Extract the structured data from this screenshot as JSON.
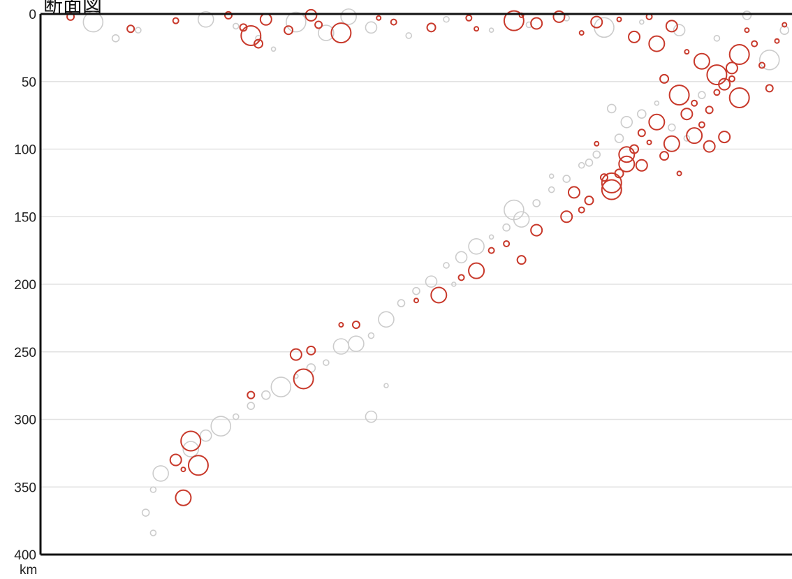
{
  "chart_data": {
    "type": "scatter",
    "title": "断面図",
    "unit_label": "km",
    "xlabel": "",
    "ylabel": "",
    "y_inverted": true,
    "ylim": [
      0,
      400
    ],
    "y_ticks": [
      0,
      50,
      100,
      150,
      200,
      250,
      300,
      350,
      400
    ],
    "grid": true,
    "colors": {
      "axis": "#111111",
      "grid": "#e2e2e2",
      "recent": "#c8392b",
      "past": "#cccccc"
    },
    "series": [
      {
        "category": "red",
        "points": [
          [
            0.04,
            2
          ],
          [
            0.12,
            11
          ],
          [
            0.18,
            5
          ],
          [
            0.25,
            1
          ],
          [
            0.27,
            10
          ],
          [
            0.28,
            16
          ],
          [
            0.29,
            22
          ],
          [
            0.3,
            4
          ],
          [
            0.33,
            12
          ],
          [
            0.36,
            1
          ],
          [
            0.37,
            8
          ],
          [
            0.4,
            14
          ],
          [
            0.45,
            3
          ],
          [
            0.47,
            6
          ],
          [
            0.52,
            10
          ],
          [
            0.57,
            3
          ],
          [
            0.58,
            11
          ],
          [
            0.63,
            5
          ],
          [
            0.64,
            1
          ],
          [
            0.66,
            7
          ],
          [
            0.69,
            2
          ],
          [
            0.72,
            14
          ],
          [
            0.74,
            6
          ],
          [
            0.77,
            4
          ],
          [
            0.79,
            17
          ],
          [
            0.81,
            2
          ],
          [
            0.82,
            22
          ],
          [
            0.84,
            9
          ],
          [
            0.86,
            28
          ],
          [
            0.88,
            35
          ],
          [
            0.9,
            45
          ],
          [
            0.91,
            52
          ],
          [
            0.92,
            40
          ],
          [
            0.93,
            30
          ],
          [
            0.94,
            12
          ],
          [
            0.95,
            22
          ],
          [
            0.96,
            38
          ],
          [
            0.97,
            55
          ],
          [
            0.98,
            20
          ],
          [
            0.99,
            8
          ],
          [
            0.83,
            48
          ],
          [
            0.85,
            60
          ],
          [
            0.86,
            74
          ],
          [
            0.87,
            66
          ],
          [
            0.88,
            82
          ],
          [
            0.89,
            71
          ],
          [
            0.9,
            58
          ],
          [
            0.91,
            91
          ],
          [
            0.92,
            48
          ],
          [
            0.93,
            62
          ],
          [
            0.8,
            88
          ],
          [
            0.81,
            95
          ],
          [
            0.79,
            100
          ],
          [
            0.78,
            111
          ],
          [
            0.77,
            118
          ],
          [
            0.76,
            130
          ],
          [
            0.75,
            121
          ],
          [
            0.73,
            138
          ],
          [
            0.72,
            145
          ],
          [
            0.7,
            150
          ],
          [
            0.78,
            104
          ],
          [
            0.8,
            112
          ],
          [
            0.82,
            80
          ],
          [
            0.84,
            96
          ],
          [
            0.66,
            160
          ],
          [
            0.64,
            182
          ],
          [
            0.6,
            175
          ],
          [
            0.62,
            170
          ],
          [
            0.58,
            190
          ],
          [
            0.56,
            195
          ],
          [
            0.53,
            208
          ],
          [
            0.5,
            212
          ],
          [
            0.42,
            230
          ],
          [
            0.4,
            230
          ],
          [
            0.36,
            249
          ],
          [
            0.34,
            252
          ],
          [
            0.35,
            270
          ],
          [
            0.28,
            282
          ],
          [
            0.2,
            316
          ],
          [
            0.18,
            330
          ],
          [
            0.21,
            334
          ],
          [
            0.19,
            337
          ],
          [
            0.19,
            358
          ],
          [
            0.74,
            96
          ],
          [
            0.76,
            125
          ],
          [
            0.71,
            132
          ],
          [
            0.83,
            105
          ],
          [
            0.85,
            118
          ],
          [
            0.87,
            90
          ],
          [
            0.89,
            98
          ]
        ]
      },
      {
        "category": "gray",
        "points": [
          [
            0.07,
            6
          ],
          [
            0.1,
            18
          ],
          [
            0.13,
            12
          ],
          [
            0.22,
            4
          ],
          [
            0.26,
            9
          ],
          [
            0.29,
            18
          ],
          [
            0.31,
            26
          ],
          [
            0.34,
            6
          ],
          [
            0.38,
            14
          ],
          [
            0.41,
            2
          ],
          [
            0.44,
            10
          ],
          [
            0.49,
            16
          ],
          [
            0.54,
            4
          ],
          [
            0.6,
            12
          ],
          [
            0.65,
            8
          ],
          [
            0.7,
            3
          ],
          [
            0.75,
            10
          ],
          [
            0.8,
            6
          ],
          [
            0.85,
            12
          ],
          [
            0.9,
            18
          ],
          [
            0.94,
            1
          ],
          [
            0.97,
            34
          ],
          [
            0.99,
            12
          ],
          [
            0.76,
            70
          ],
          [
            0.78,
            80
          ],
          [
            0.8,
            74
          ],
          [
            0.82,
            66
          ],
          [
            0.84,
            84
          ],
          [
            0.86,
            92
          ],
          [
            0.88,
            60
          ],
          [
            0.74,
            104
          ],
          [
            0.72,
            112
          ],
          [
            0.7,
            122
          ],
          [
            0.68,
            130
          ],
          [
            0.66,
            140
          ],
          [
            0.64,
            152
          ],
          [
            0.62,
            158
          ],
          [
            0.6,
            165
          ],
          [
            0.58,
            172
          ],
          [
            0.56,
            180
          ],
          [
            0.54,
            186
          ],
          [
            0.52,
            198
          ],
          [
            0.5,
            205
          ],
          [
            0.48,
            214
          ],
          [
            0.46,
            226
          ],
          [
            0.44,
            238
          ],
          [
            0.42,
            244
          ],
          [
            0.4,
            246
          ],
          [
            0.38,
            258
          ],
          [
            0.36,
            262
          ],
          [
            0.34,
            268
          ],
          [
            0.32,
            276
          ],
          [
            0.3,
            282
          ],
          [
            0.28,
            290
          ],
          [
            0.26,
            298
          ],
          [
            0.24,
            305
          ],
          [
            0.22,
            312
          ],
          [
            0.2,
            322
          ],
          [
            0.18,
            330
          ],
          [
            0.16,
            340
          ],
          [
            0.15,
            352
          ],
          [
            0.14,
            369
          ],
          [
            0.15,
            384
          ],
          [
            0.44,
            298
          ],
          [
            0.46,
            275
          ],
          [
            0.55,
            200
          ],
          [
            0.63,
            145
          ],
          [
            0.68,
            120
          ],
          [
            0.73,
            110
          ],
          [
            0.77,
            92
          ]
        ]
      }
    ]
  }
}
